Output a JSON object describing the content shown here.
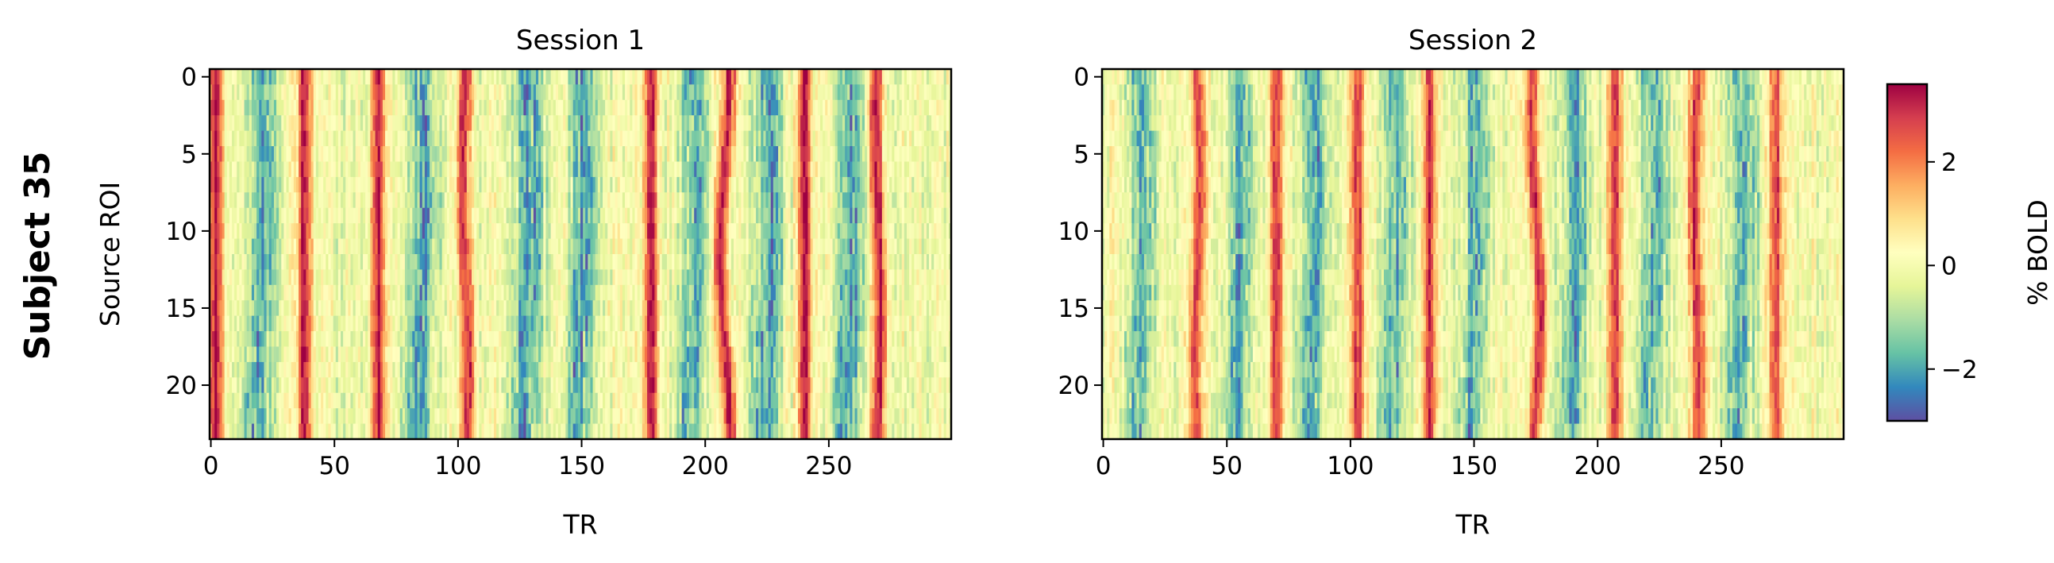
{
  "figure": {
    "row_label": "Subject 35"
  },
  "chart_data": [
    {
      "type": "heatmap",
      "title": "Session 1",
      "xlabel": "TR",
      "ylabel": "Source ROI",
      "n_rows": 24,
      "n_cols": 300,
      "xticks": [
        0,
        50,
        100,
        150,
        200,
        250
      ],
      "yticks": [
        0,
        5,
        10,
        15,
        20
      ],
      "xlim": [
        -0.5,
        299.5
      ],
      "ylim": [
        23.5,
        -0.5
      ],
      "peak_trs": [
        2,
        38,
        68,
        103,
        178,
        208,
        240,
        270
      ],
      "trough_trs": [
        20,
        85,
        128,
        150,
        195,
        225,
        258
      ],
      "peak_drift": [
        0,
        0,
        0,
        1,
        0,
        -2,
        0,
        -1
      ],
      "peak_amplitude": 3.2,
      "trough_amplitude": -2.0,
      "value_range": [
        -3.0,
        3.5
      ]
    },
    {
      "type": "heatmap",
      "title": "Session 2",
      "xlabel": "TR",
      "ylabel": "",
      "n_rows": 24,
      "n_cols": 300,
      "xticks": [
        0,
        50,
        100,
        150,
        200,
        250
      ],
      "yticks": [
        0,
        5,
        10,
        15,
        20
      ],
      "xlim": [
        -0.5,
        299.5
      ],
      "ylim": [
        23.5,
        -0.5
      ],
      "peak_trs": [
        38,
        70,
        103,
        132,
        175,
        207,
        240,
        272
      ],
      "trough_trs": [
        15,
        55,
        85,
        118,
        150,
        190,
        222,
        258
      ],
      "peak_drift": [
        1,
        0,
        0,
        0,
        2,
        0,
        -1,
        0
      ],
      "peak_amplitude": 2.8,
      "trough_amplitude": -1.8,
      "value_range": [
        -3.0,
        3.5
      ]
    }
  ],
  "colorbar": {
    "label": "% BOLD",
    "colormap": "Spectral_r",
    "vmin": -3.0,
    "vmax": 3.5,
    "ticks": [
      -2,
      0,
      2
    ],
    "tick_labels": [
      "−2",
      "0",
      "2"
    ],
    "colors": [
      "#5e4fa2",
      "#3288bd",
      "#66c2a5",
      "#abdda4",
      "#e6f598",
      "#ffffbf",
      "#fee08b",
      "#fdae61",
      "#f46d43",
      "#d53e4f",
      "#9e0142"
    ]
  }
}
